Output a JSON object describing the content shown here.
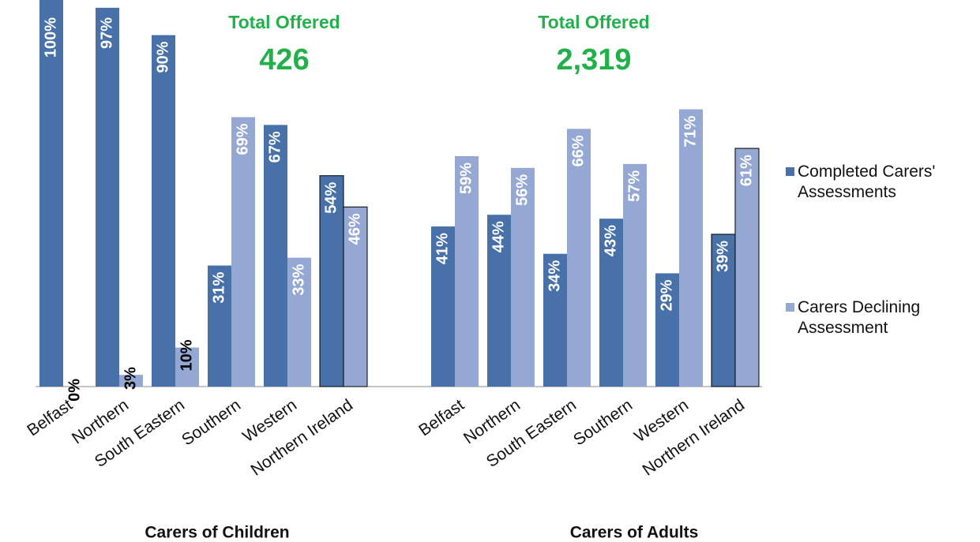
{
  "chart_data": {
    "type": "bar",
    "series": [
      {
        "name": "Completed Carers' Assessments",
        "color": "#4771a8"
      },
      {
        "name": "Carers Declining Assessment",
        "color": "#94a8d3"
      }
    ],
    "panels": [
      {
        "xlabel": "Carers of Children",
        "annotation": "Total Offered",
        "total": 426,
        "categories": [
          "Belfast",
          "Northern",
          "South Eastern",
          "Southern",
          "Western",
          "Northern Ireland"
        ],
        "values": [
          {
            "values": [
              100,
              97,
              90,
              31,
              67,
              54
            ],
            "value_labels": [
              "100%",
              "97%",
              "90%",
              "31%",
              "67%",
              "54%"
            ]
          },
          {
            "values": [
              0,
              3,
              10,
              69,
              33,
              46
            ],
            "value_labels": [
              "0%",
              "3%",
              "10%",
              "69%",
              "33%",
              "46%"
            ]
          }
        ]
      },
      {
        "xlabel": "Carers of Adults",
        "annotation": "Total Offered",
        "total": {
          "value": 2319,
          "label": "2,319"
        },
        "categories": [
          "Belfast",
          "Northern",
          "South Eastern",
          "Southern",
          "Western",
          "Northern Ireland"
        ],
        "values": [
          {
            "values": [
              41,
              44,
              34,
              43,
              29,
              39
            ],
            "value_labels": [
              "41%",
              "44%",
              "34%",
              "43%",
              "29%",
              "39%"
            ]
          },
          {
            "values": [
              59,
              56,
              66,
              57,
              71,
              61
            ],
            "value_labels": [
              "59%",
              "56%",
              "66%",
              "57%",
              "71%",
              "61%"
            ]
          }
        ]
      }
    ]
  }
}
